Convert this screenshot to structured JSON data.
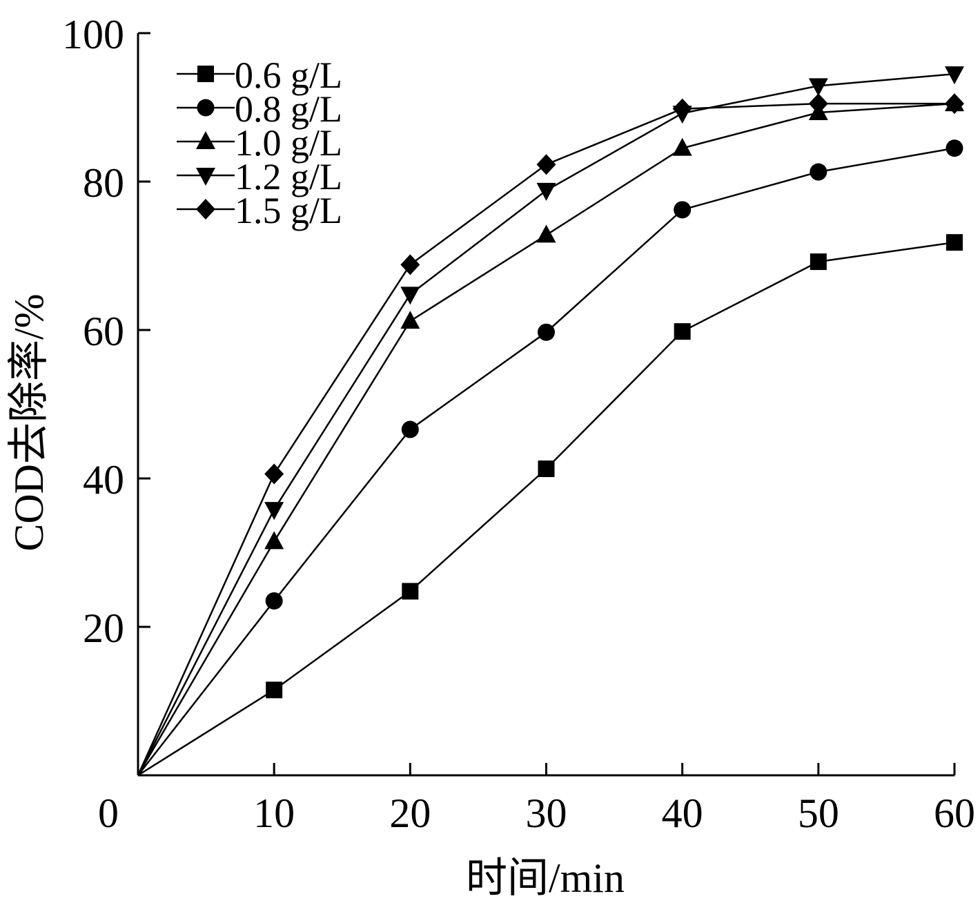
{
  "chart_data": {
    "type": "line",
    "xlabel": "时间/min",
    "ylabel": "COD去除率/%",
    "xlim": [
      0,
      60
    ],
    "ylim": [
      0,
      100
    ],
    "x_ticks": [
      0,
      10,
      20,
      30,
      40,
      50,
      60
    ],
    "y_ticks": [
      20,
      40,
      60,
      80,
      100
    ],
    "x_tick_labels": [
      "0",
      "10",
      "20",
      "30",
      "40",
      "50",
      "60"
    ],
    "y_tick_labels": [
      "20",
      "40",
      "60",
      "80",
      "100"
    ],
    "legend_position": "top-left",
    "grid": false,
    "x": [
      0,
      10,
      20,
      30,
      40,
      50,
      60
    ],
    "series": [
      {
        "name": "0.6 g/L",
        "marker": "square",
        "values": [
          0,
          11.5,
          24.8,
          41.3,
          59.8,
          69.2,
          71.8
        ]
      },
      {
        "name": "0.8 g/L",
        "marker": "circle",
        "values": [
          0,
          23.5,
          46.6,
          59.7,
          76.2,
          81.3,
          84.5
        ]
      },
      {
        "name": "1.0 g/L",
        "marker": "triangle-up",
        "values": [
          0,
          31.5,
          61.2,
          72.8,
          84.5,
          89.3,
          90.5
        ]
      },
      {
        "name": "1.2 g/L",
        "marker": "triangle-down",
        "values": [
          0,
          35.8,
          64.8,
          78.8,
          89.2,
          92.9,
          94.5
        ]
      },
      {
        "name": "1.5 g/L",
        "marker": "diamond",
        "values": [
          0,
          40.6,
          68.8,
          82.3,
          89.8,
          90.5,
          90.5
        ]
      }
    ]
  }
}
